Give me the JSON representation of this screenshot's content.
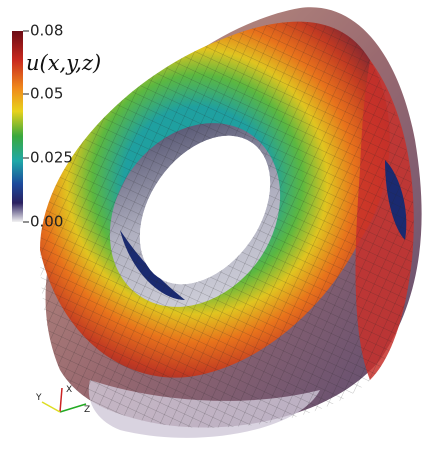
{
  "colorbar": {
    "title": "u(x,y,z)",
    "ticks": [
      "0.08",
      "0.05",
      "0.025",
      "0.00"
    ]
  },
  "axes_triad": {
    "labels": [
      "X",
      "Y",
      "Z"
    ]
  }
}
